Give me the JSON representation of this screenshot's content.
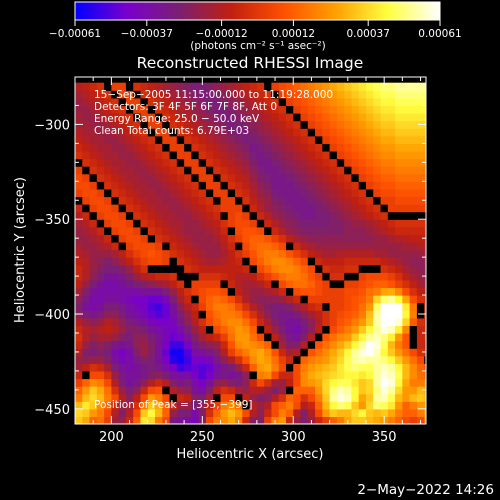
{
  "chart_data": {
    "type": "heatmap",
    "title": "Reconstructed RHESSI Image",
    "xlabel": "Heliocentric X (arcsec)",
    "ylabel": "Heliocentric Y (arcsec)",
    "xlim": [
      180,
      373
    ],
    "ylim": [
      -458,
      -275
    ],
    "x_ticks": [
      200,
      250,
      300,
      350
    ],
    "y_ticks": [
      -300,
      -350,
      -400,
      -450
    ],
    "x_tick_labels": [
      "200",
      "250",
      "300",
      "350"
    ],
    "y_tick_labels": [
      "−300",
      "−350",
      "−400",
      "−450"
    ],
    "colorbar": {
      "ticks": [
        -0.00061,
        -0.00037,
        -0.00012,
        0.00012,
        0.00037,
        0.00061
      ],
      "tick_labels": [
        "−0.00061",
        "−0.00037",
        "−0.00012",
        "0.00012",
        "0.00037",
        "0.00061"
      ],
      "unit_label": "(photons cm⁻² s⁻¹ asec⁻²)",
      "colormap": [
        "#0000ff",
        "#7a00cc",
        "#7a2070",
        "#c02010",
        "#ff5000",
        "#ffa000",
        "#ffff40",
        "#ffffff"
      ]
    },
    "annotations": [
      "15−Sep−2005 11:15:00.000 to 11:19:28.000",
      "Detectors: 3F 4F 5F 6F 7F 8F, Att 0",
      "Energy Range: 25.0 − 50.0 keV",
      "Clean     Total counts: 6.79E+03"
    ],
    "peak_label": "Position of Peak = [355,−399]",
    "peak": [
      355,
      -399
    ],
    "grid_origin": [
      180,
      -458
    ],
    "grid_step": 4,
    "grid": [
      "0.55,0.45,0.20,0.25,0.05,-0.30,-0.30,-0.10,0.20,0.65,0.60,0.30,0.10,-0.50,-0.55,-0.60,-0.65,-0.40,0.10,0.30,0.35,0.45,0.30,-0.10,-0.40,-0.40,0.05,0.30,0.40,-0.10,-0.30,-0.40,-0.30,-0.10,0.05,0.20,0.30,0.45,0.55,0.55,0.50,0.45,0.40,0.30,0.20,0.10,0.05,0.10,0.30",
      "0.60,0.55,0.40,0.30,0.10,-0.20,-0.40,-0.20,0.10,0.55,0.70,0.50,0.20,-0.30,-0.45,-0.45,-0.60,-0.40,-0.05,0.20,0.40,0.50,0.40,0.10,-0.20,-0.35,-0.10,0.10,0.30,0.20,-0.20,-0.40,-0.20,0.10,0.40,0.55,0.50,0.50,0.60,0.70,0.55,0.50,0.55,0.45,0.30,0.20,0.20,0.30,0.40",
      "0.50,0.65,0.55,0.35,0.20,-0.10,-0.30,-0.25,-0.05,0.30,0.55,0.45,0.20,-0.10,-0.30,-0.30,-0.45,-0.35,-0.15,0.05,0.30,0.35,0.25,0.00,-0.20,-0.30,-0.20,0.10,0.20,0.30,0.10,-0.20,-0.10,0.20,0.50,0.70,0.80,0.75,0.55,0.40,0.60,0.80,0.75,0.65,0.40,0.20,0.30,0.40,0.40",
      "0.30,0.50,0.60,0.50,0.30,0.10,-0.20,-0.35,-0.15,0.10,0.40,0.30,0.10,0.00,-0.10,-0.15,-0.40,-0.45,-0.25,0.00,0.10,0.10,0.00,-0.15,-0.30,-0.40,-0.35,-0.20,-0.05,0.20,0.15,-0.05,0.10,0.30,0.55,0.85,0.95,0.90,0.70,0.45,0.55,0.85,0.90,0.75,0.50,0.40,0.50,0.55,0.50",
      "0.20,0.40,0.55,0.45,0.25,-0.05,-0.30,-0.45,-0.35,-0.10,0.10,0.15,0.00,-0.20,-0.30,-0.35,-0.55,-0.60,-0.40,-0.15,-0.05,-0.10,-0.25,-0.30,-0.20,-0.20,-0.30,-0.40,-0.30,0.00,0.20,0.20,0.20,0.40,0.60,0.80,0.90,0.85,0.70,0.55,0.60,0.80,0.95,0.85,0.60,0.40,0.40,0.50,0.45",
      "0.05,0.20,0.35,0.30,0.10,-0.20,-0.45,-0.55,-0.50,-0.35,-0.20,-0.10,-0.20,-0.40,-0.50,-0.45,-0.60,-0.70,-0.55,-0.35,-0.30,-0.40,-0.45,-0.35,-0.10,0.10,-0.05,-0.25,-0.30,-0.15,0.10,0.35,0.40,0.45,0.60,0.70,0.75,0.75,0.65,0.55,0.60,0.85,1.00,0.95,0.70,0.45,0.30,0.30,0.35",
      "-0.10,0.00,0.10,0.10,-0.05,-0.30,-0.50,-0.55,-0.55,-0.50,-0.40,-0.35,-0.45,-0.55,-0.60,-0.60,-0.70,-0.80,-0.70,-0.55,-0.50,-0.55,-0.50,-0.35,0.00,0.30,0.35,0.10,-0.10,-0.10,0.10,0.35,0.45,0.50,0.55,0.60,0.65,0.70,0.70,0.65,0.70,0.85,0.95,0.90,0.75,0.50,0.35,0.25,0.20",
      "-0.25,-0.15,-0.05,-0.10,-0.25,-0.45,-0.55,-0.60,-0.55,-0.50,-0.45,-0.50,-0.60,-0.70,-0.85,-0.80,-0.75,-0.80,-0.75,-0.60,-0.50,-0.45,-0.30,-0.10,0.20,0.40,0.45,0.30,0.10,0.00,0.10,0.30,0.40,0.45,0.50,0.55,0.65,0.75,0.80,0.75,0.75,0.85,0.90,0.85,0.70,0.50,0.35,0.20,0.10",
      "-0.30,-0.35,-0.30,-0.30,-0.40,-0.55,-0.65,-0.60,-0.50,-0.40,-0.45,-0.55,-0.70,-0.90,-0.95,-0.85,-0.70,-0.70,-0.65,-0.50,-0.35,-0.20,-0.05,0.15,0.35,0.45,0.40,0.25,0.05,-0.10,0.00,0.20,0.30,0.35,0.40,0.50,0.60,0.75,0.85,0.90,0.85,0.85,0.80,0.70,0.55,0.40,0.25,0.10,0.00",
      "-0.20,-0.40,-0.45,-0.40,-0.45,-0.60,-0.70,-0.60,-0.40,-0.30,-0.40,-0.55,-0.75,-0.95,-0.95,-0.80,-0.60,-0.55,-0.50,-0.40,-0.20,0.05,0.20,0.30,0.40,0.45,0.35,0.15,-0.10,-0.25,-0.20,0.00,0.15,0.25,0.35,0.45,0.55,0.70,0.85,0.95,1.00,0.90,0.70,0.55,0.40,0.25,0.10,-0.05,-0.10",
      "-0.10,-0.30,-0.40,-0.35,-0.40,-0.50,-0.55,-0.50,-0.35,-0.30,-0.40,-0.55,-0.70,-0.85,-0.85,-0.70,-0.50,-0.40,-0.35,-0.30,-0.10,0.15,0.35,0.40,0.35,0.30,0.20,0.00,-0.25,-0.40,-0.40,-0.20,0.00,0.15,0.25,0.35,0.45,0.55,0.70,0.85,1.00,0.95,0.75,0.50,0.30,0.15,0.00,-0.10,-0.15",
      "-0.05,-0.20,-0.30,-0.25,-0.25,-0.30,-0.40,-0.45,-0.35,-0.35,-0.45,-0.55,-0.65,-0.75,-0.70,-0.55,-0.40,-0.25,-0.15,-0.10,0.05,0.25,0.40,0.40,0.25,0.10,0.00,-0.15,-0.35,-0.50,-0.55,-0.40,-0.20,0.00,0.15,0.25,0.35,0.40,0.55,0.70,0.85,0.90,0.80,0.60,0.35,0.15,0.00,-0.10,-0.10",
      "-0.10,-0.20,-0.25,-0.20,-0.15,-0.20,-0.30,-0.40,-0.40,-0.45,-0.55,-0.60,-0.65,-0.70,-0.60,-0.45,-0.30,-0.15,0.00,0.10,0.20,0.30,0.40,0.35,0.20,0.00,-0.15,-0.30,-0.45,-0.55,-0.60,-0.50,-0.35,-0.15,0.00,0.10,0.20,0.30,0.40,0.55,0.70,0.75,0.70,0.55,0.35,0.15,0.00,-0.10,-0.10",
      "-0.20,-0.30,-0.35,-0.30,-0.20,-0.25,-0.35,-0.45,-0.50,-0.55,-0.65,-0.70,-0.70,-0.65,-0.50,-0.35,-0.20,-0.05,0.10,0.20,0.30,0.35,0.35,0.25,0.10,-0.10,-0.25,-0.40,-0.50,-0.55,-0.55,-0.45,-0.35,-0.20,-0.05,0.05,0.15,0.20,0.30,0.40,0.55,0.60,0.60,0.50,0.35,0.20,0.05,-0.05,-0.10",
      "-0.35,-0.45,-0.50,-0.45,-0.35,-0.35,-0.45,-0.55,-0.60,-0.65,-0.75,-0.80,-0.75,-0.60,-0.45,-0.30,-0.15,0.00,0.15,0.25,0.30,0.30,0.25,0.10,-0.05,-0.20,-0.35,-0.45,-0.50,-0.50,-0.45,-0.35,-0.25,-0.15,-0.05,0.05,0.10,0.15,0.20,0.30,0.45,0.50,0.50,0.45,0.35,0.20,0.10,0.00,-0.05",
      "-0.40,-0.55,-0.60,-0.55,-0.45,-0.45,-0.50,-0.60,-0.65,-0.70,-0.80,-0.85,-0.75,-0.55,-0.35,-0.20,-0.10,0.05,0.20,0.30,0.30,0.25,0.10,-0.05,-0.20,-0.30,-0.40,-0.45,-0.45,-0.40,-0.30,-0.20,-0.10,-0.05,0.00,0.05,0.05,0.10,0.15,0.25,0.35,0.45,0.45,0.40,0.30,0.20,0.10,0.00,-0.05",
      "-0.35,-0.50,-0.60,-0.60,-0.55,-0.55,-0.60,-0.65,-0.70,-0.70,-0.75,-0.75,-0.65,-0.45,-0.25,-0.10,0.00,0.10,0.20,0.25,0.20,0.10,-0.05,-0.20,-0.30,-0.35,-0.35,-0.35,-0.30,-0.20,-0.10,0.00,0.05,0.05,0.05,0.05,0.05,0.10,0.15,0.20,0.30,0.40,0.40,0.35,0.25,0.15,0.05,-0.05,-0.10",
      "-0.25,-0.40,-0.55,-0.60,-0.60,-0.60,-0.60,-0.60,-0.60,-0.55,-0.55,-0.55,-0.45,-0.30,-0.15,-0.05,0.05,0.10,0.15,0.15,0.10,0.00,-0.15,-0.25,-0.30,-0.30,-0.25,-0.20,-0.10,0.00,0.10,0.15,0.15,0.10,0.05,0.05,0.05,0.10,0.10,0.15,0.25,0.30,0.30,0.25,0.15,0.05,-0.05,-0.15,-0.20",
      "-0.15,-0.30,-0.45,-0.55,-0.60,-0.60,-0.55,-0.50,-0.45,-0.40,-0.35,-0.30,-0.25,-0.15,-0.05,0.00,0.05,0.05,0.05,0.05,0.00,-0.10,-0.20,-0.25,-0.25,-0.20,-0.10,0.00,0.10,0.20,0.25,0.25,0.20,0.10,0.05,0.00,0.00,0.05,0.05,0.10,0.15,0.20,0.20,0.15,0.05,-0.05,-0.15,-0.25,-0.30",
      "-0.10,-0.20,-0.35,-0.45,-0.55,-0.55,-0.50,-0.40,-0.30,-0.20,-0.15,-0.10,-0.10,-0.05,0.00,0.00,0.00,-0.05,-0.05,-0.05,-0.10,-0.15,-0.20,-0.20,-0.15,-0.05,0.05,0.15,0.25,0.30,0.30,0.25,0.15,0.05,0.00,-0.05,-0.05,0.00,0.00,0.05,0.10,0.10,0.10,0.05,-0.05,-0.15,-0.25,-0.30,-0.35",
      "-0.10,-0.20,-0.30,-0.40,-0.45,-0.45,-0.40,-0.30,-0.15,-0.05,0.00,0.00,0.00,0.00,0.00,-0.05,-0.10,-0.15,-0.15,-0.15,-0.15,-0.15,-0.15,-0.10,0.00,0.10,0.20,0.30,0.35,0.35,0.30,0.20,0.10,0.00,-0.05,-0.10,-0.10,-0.05,-0.05,0.00,0.00,0.00,-0.05,-0.10,-0.15,-0.25,-0.30,-0.35,-0.35",
      "-0.15,-0.20,-0.30,-0.35,-0.40,-0.35,-0.25,-0.15,-0.05,0.05,0.10,0.10,0.05,0.00,-0.05,-0.10,-0.15,-0.20,-0.25,-0.25,-0.20,-0.15,-0.10,0.00,0.10,0.20,0.30,0.35,0.35,0.30,0.20,0.10,0.00,-0.10,-0.15,-0.15,-0.15,-0.10,-0.10,-0.10,-0.10,-0.10,-0.15,-0.20,-0.25,-0.30,-0.35,-0.35,-0.30",
      "-0.20,-0.25,-0.30,-0.30,-0.30,-0.25,-0.15,-0.05,0.05,0.10,0.15,0.10,0.05,-0.05,-0.10,-0.15,-0.20,-0.25,-0.30,-0.30,-0.25,-0.15,-0.05,0.05,0.15,0.25,0.30,0.30,0.25,0.15,0.05,-0.05,-0.15,-0.20,-0.25,-0.25,-0.20,-0.20,-0.20,-0.20,-0.20,-0.25,-0.25,-0.30,-0.30,-0.30,-0.30,-0.30,-0.25",
      "-0.25,-0.30,-0.30,-0.25,-0.20,-0.10,0.00,0.05,0.10,0.10,0.10,0.05,0.00,-0.10,-0.15,-0.20,-0.25,-0.30,-0.30,-0.30,-0.20,-0.10,0.00,0.10,0.20,0.25,0.25,0.20,0.10,0.00,-0.10,-0.20,-0.25,-0.30,-0.30,-0.30,-0.30,-0.30,-0.30,-0.30,-0.30,-0.30,-0.30,-0.30,-0.30,-0.25,-0.25,-0.20,-0.20",
      "-0.30,-0.30,-0.25,-0.20,-0.10,0.00,0.05,0.10,0.10,0.05,0.00,-0.05,-0.10,-0.15,-0.20,-0.25,-0.30,-0.30,-0.30,-0.25,-0.15,-0.05,0.05,0.15,0.20,0.20,0.15,0.05,-0.05,-0.15,-0.25,-0.30,-0.35,-0.35,-0.35,-0.35,-0.35,-0.35,-0.35,-0.35,-0.35,-0.30,-0.30,-0.25,-0.20,-0.20,-0.15,-0.15,-0.15",
      "-0.30,-0.25,-0.20,-0.10,0.00,0.05,0.10,0.10,0.05,0.00,-0.05,-0.10,-0.15,-0.20,-0.25,-0.30,-0.30,-0.30,-0.25,-0.20,-0.10,0.00,0.10,0.15,0.15,0.10,0.00,-0.10,-0.20,-0.30,-0.35,-0.40,-0.40,-0.40,-0.40,-0.40,-0.40,-0.35,-0.35,-0.35,-0.30,-0.25,-0.20,-0.15,-0.10,-0.10,-0.10,-0.10,-0.10",
      "-0.25,-0.20,-0.10,0.00,0.05,0.10,0.10,0.05,0.00,-0.05,-0.10,-0.15,-0.20,-0.25,-0.25,-0.30,-0.30,-0.25,-0.20,-0.15,-0.05,0.05,0.10,0.10,0.05,0.00,-0.10,-0.20,-0.30,-0.35,-0.40,-0.45,-0.45,-0.45,-0.45,-0.40,-0.40,-0.35,-0.30,-0.30,-0.25,-0.20,-0.15,-0.10,-0.05,-0.05,-0.05,-0.05,-0.05",
      "-0.20,-0.10,0.00,0.05,0.10,0.10,0.05,0.00,-0.05,-0.10,-0.15,-0.20,-0.25,-0.25,-0.30,-0.30,-0.25,-0.20,-0.15,-0.10,0.00,0.05,0.10,0.05,0.00,-0.10,-0.20,-0.30,-0.35,-0.40,-0.45,-0.50,-0.50,-0.45,-0.45,-0.40,-0.35,-0.30,-0.25,-0.20,-0.15,-0.10,-0.05,0.00,0.00,0.00,0.00,0.00,0.00",
      "-0.10,0.00,0.05,0.10,0.10,0.05,0.00,-0.05,-0.10,-0.15,-0.20,-0.25,-0.25,-0.30,-0.30,-0.25,-0.20,-0.15,-0.10,-0.05,0.05,0.05,0.05,0.00,-0.10,-0.20,-0.30,-0.35,-0.40,-0.45,-0.50,-0.50,-0.50,-0.45,-0.40,-0.35,-0.30,-0.25,-0.20,-0.15,-0.10,-0.05,0.00,0.05,0.05,0.05,0.05,0.05,0.05",
      "0.00,0.05,0.10,0.10,0.05,0.00,-0.05,-0.10,-0.15,-0.20,-0.25,-0.25,-0.30,-0.30,-0.25,-0.20,-0.15,-0.10,-0.05,0.00,0.05,0.05,0.00,-0.05,-0.15,-0.25,-0.30,-0.40,-0.45,-0.50,-0.50,-0.50,-0.45,-0.40,-0.35,-0.30,-0.25,-0.20,-0.15,-0.10,-0.05,0.00,0.05,0.05,0.10,0.10,0.10,0.10,0.10",
      "0.05,0.10,0.10,0.05,0.00,-0.05,-0.10,-0.15,-0.20,-0.25,-0.25,-0.30,-0.30,-0.25,-0.20,-0.15,-0.10,-0.05,0.00,0.05,0.05,0.00,-0.05,-0.10,-0.20,-0.30,-0.35,-0.45,-0.50,-0.50,-0.50,-0.45,-0.40,-0.35,-0.30,-0.25,-0.20,-0.15,-0.10,-0.05,0.00,0.05,0.10,0.10,0.15,0.15,0.15,0.15,0.15",
      "0.10,0.10,0.05,0.00,-0.05,-0.10,-0.15,-0.20,-0.25,-0.25,-0.30,-0.30,-0.25,-0.20,-0.15,-0.10,-0.05,0.00,0.05,0.05,0.00,-0.05,-0.10,-0.15,-0.25,-0.35,-0.40,-0.50,-0.50,-0.50,-0.45,-0.40,-0.35,-0.30,-0.25,-0.20,-0.15,-0.10,-0.05,0.00,0.05,0.10,0.15,0.15,0.20,0.20,0.20,0.20,0.20",
      "0.10,0.05,0.00,-0.05,-0.10,-0.15,-0.20,-0.25,-0.25,-0.30,-0.30,-0.25,-0.20,-0.15,-0.10,-0.05,0.00,0.05,0.05,0.00,-0.05,-0.10,-0.15,-0.20,-0.30,-0.40,-0.45,-0.50,-0.50,-0.45,-0.40,-0.35,-0.30,-0.25,-0.20,-0.15,-0.10,-0.05,0.00,0.05,0.10,0.15,0.20,0.20,0.25,0.25,0.25,0.25,0.25",
      "0.05,0.00,-0.05,-0.10,-0.15,-0.20,-0.25,-0.25,-0.30,-0.30,-0.25,-0.20,-0.15,-0.10,-0.05,0.00,0.05,0.05,0.00,-0.05,-0.10,-0.15,-0.20,-0.25,-0.35,-0.45,-0.50,-0.50,-0.45,-0.40,-0.35,-0.30,-0.25,-0.20,-0.15,-0.10,-0.05,0.00,0.05,0.10,0.15,0.20,0.25,0.25,0.30,0.30,0.30,0.30,0.30",
      "0.00,-0.05,-0.10,-0.15,-0.20,-0.25,-0.25,-0.30,-0.30,-0.25,-0.20,-0.15,-0.10,-0.05,0.00,0.05,0.05,0.00,-0.05,-0.10,-0.15,-0.20,-0.25,-0.30,-0.40,-0.50,-0.50,-0.45,-0.40,-0.35,-0.30,-0.25,-0.20,-0.15,-0.10,-0.05,0.00,0.05,0.10,0.15,0.20,0.25,0.30,0.30,0.35,0.35,0.35,0.35,0.35",
      "-0.05,-0.10,-0.15,-0.20,-0.25,-0.25,-0.30,-0.30,-0.25,-0.20,-0.15,-0.10,-0.05,0.00,0.05,0.05,0.00,-0.05,-0.10,-0.15,-0.20,-0.25,-0.30,-0.35,-0.45,-0.50,-0.45,-0.40,-0.35,-0.30,-0.25,-0.20,-0.15,-0.10,-0.05,0.00,0.05,0.10,0.15,0.20,0.25,0.30,0.35,0.35,0.40,0.40,0.40,0.40,0.40",
      "-0.10,-0.15,-0.20,-0.25,-0.25,-0.30,-0.30,-0.25,-0.20,-0.15,-0.10,-0.05,0.00,0.05,0.05,0.00,-0.05,-0.10,-0.15,-0.20,-0.25,-0.30,-0.35,-0.40,-0.50,-0.45,-0.40,-0.35,-0.30,-0.25,-0.20,-0.15,-0.10,-0.05,0.00,0.05,0.10,0.15,0.20,0.25,0.30,0.35,0.40,0.40,0.45,0.45,0.45,0.45,0.45",
      "-0.15,-0.20,-0.25,-0.25,-0.30,-0.30,-0.25,-0.20,-0.15,-0.10,-0.05,0.00,0.05,0.05,0.00,-0.05,-0.10,-0.15,-0.20,-0.25,-0.30,-0.35,-0.40,-0.45,-0.45,-0.40,-0.35,-0.30,-0.25,-0.20,-0.15,-0.10,-0.05,0.00,0.05,0.10,0.15,0.20,0.25,0.30,0.35,0.40,0.45,0.45,0.50,0.50,0.50,0.50,0.50",
      "-0.20,-0.25,-0.25,-0.30,-0.30,-0.25,-0.20,-0.15,-0.10,-0.05,0.00,0.05,0.05,0.00,-0.05,-0.10,-0.15,-0.20,-0.25,-0.30,-0.35,-0.40,-0.45,-0.45,-0.40,-0.35,-0.30,-0.25,-0.20,-0.15,-0.10,-0.05,0.00,0.05,0.10,0.15,0.20,0.25,0.30,0.35,0.40,0.45,0.50,0.50,0.55,0.55,0.55,0.55,0.55",
      "-0.25,-0.25,-0.30,-0.30,-0.25,-0.20,-0.15,-0.10,-0.05,0.00,0.05,0.05,0.00,-0.05,-0.10,-0.15,-0.20,-0.25,-0.30,-0.35,-0.40,-0.45,-0.45,-0.40,-0.35,-0.30,-0.25,-0.20,-0.15,-0.10,-0.05,0.00,0.05,0.10,0.15,0.20,0.25,0.30,0.35,0.40,0.45,0.50,0.55,0.55,0.60,0.60,0.60,0.60,0.60",
      "-0.25,-0.30,-0.30,-0.25,-0.20,-0.15,-0.10,-0.05,0.00,0.05,0.05,0.00,-0.05,-0.10,-0.15,-0.20,-0.25,-0.30,-0.35,-0.40,-0.45,-0.45,-0.40,-0.35,-0.30,-0.25,-0.20,-0.15,-0.10,-0.05,0.00,0.05,0.10,0.15,0.20,0.25,0.30,0.35,0.40,0.45,0.50,0.55,0.60,0.60,0.65,0.65,0.65,0.65,0.65",
      "-0.30,-0.30,-0.25,-0.20,-0.15,-0.10,-0.05,0.00,0.05,0.05,0.00,-0.05,-0.10,-0.15,-0.20,-0.25,-0.30,-0.35,-0.40,-0.45,-0.45,-0.40,-0.35,-0.30,-0.25,-0.20,-0.15,-0.10,-0.05,0.00,0.05,0.10,0.15,0.20,0.25,0.30,0.35,0.40,0.45,0.50,0.55,0.60,0.65,0.65,0.70,0.70,0.70,0.70,0.70",
      "-0.30,-0.25,-0.20,-0.15,-0.10,-0.05,0.00,0.05,0.05,0.00,-0.05,-0.10,-0.15,-0.20,-0.25,-0.30,-0.35,-0.40,-0.45,-0.45,-0.40,-0.35,-0.30,-0.25,-0.20,-0.15,-0.10,-0.05,0.00,0.05,0.10,0.15,0.20,0.25,0.30,0.35,0.40,0.45,0.50,0.55,0.60,0.65,0.70,0.70,0.75,0.75,0.75,0.75,0.75",
      "-0.25,-0.20,-0.15,-0.10,-0.05,0.00,0.05,0.05,0.00,-0.05,-0.10,-0.15,-0.20,-0.25,-0.30,-0.35,-0.40,-0.45,-0.45,-0.40,-0.35,-0.30,-0.25,-0.20,-0.15,-0.10,-0.05,0.00,0.05,0.10,0.15,0.20,0.25,0.30,0.35,0.40,0.45,0.50,0.55,0.60,0.65,0.70,0.75,0.75,0.80,0.80,0.80,0.80,0.80",
      "-0.20,-0.15,-0.10,-0.05,0.00,0.05,0.05,0.00,-0.05,-0.10,-0.15,-0.20,-0.25,-0.30,-0.35,-0.40,-0.45,-0.45,-0.40,-0.35,-0.30,-0.25,-0.20,-0.15,-0.10,-0.05,0.00,0.05,0.10,0.15,0.20,0.25,0.30,0.35,0.40,0.45,0.50,0.55,0.60,0.65,0.70,0.75,0.80,0.80,0.85,0.85,0.85,0.85,0.85"
    ]
  },
  "footer": {
    "timestamp": "2−May−2022 14:26"
  }
}
